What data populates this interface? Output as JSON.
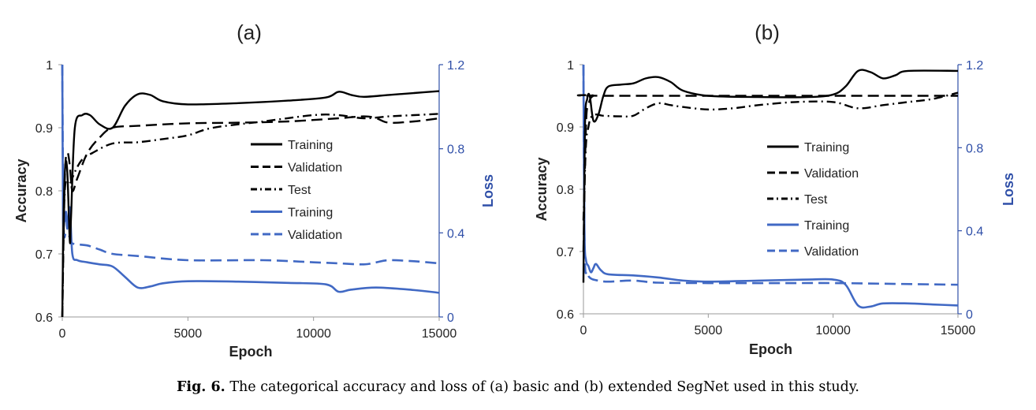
{
  "caption": {
    "label": "Fig. 6.",
    "text": "The categorical accuracy and loss of (a) basic and (b) extended SegNet used in this study."
  },
  "legend_entries": [
    "Training",
    "Validation",
    "Test",
    "Training",
    "Validation"
  ],
  "colors": {
    "accuracy": "#000000",
    "loss": "#4169c4",
    "right_axis": "#2f4fa8"
  },
  "chart_data": [
    {
      "type": "line",
      "title": "(a)",
      "xlabel": "Epoch",
      "ylabel": "Accuracy",
      "y2label": "Loss",
      "xlim": [
        0,
        15000
      ],
      "ylim": [
        0.6,
        1.0
      ],
      "y2lim": [
        0,
        1.2
      ],
      "xticks": [
        "0",
        "5000",
        "10000",
        "15000"
      ],
      "yticks": [
        "0.6",
        "0.7",
        "0.8",
        "0.9",
        "1"
      ],
      "y2ticks": [
        "0",
        "0.4",
        "0.8",
        "1.2"
      ],
      "grid": false,
      "legend_position": "center-right",
      "series": [
        {
          "name": "Training",
          "axis": "accuracy",
          "color": "#000000",
          "style": "solid",
          "points": [
            [
              0,
              0.6
            ],
            [
              50,
              0.76
            ],
            [
              120,
              0.84
            ],
            [
              200,
              0.83
            ],
            [
              300,
              0.72
            ],
            [
              350,
              0.76
            ],
            [
              500,
              0.9
            ],
            [
              800,
              0.92
            ],
            [
              1100,
              0.92
            ],
            [
              1500,
              0.905
            ],
            [
              2000,
              0.9
            ],
            [
              2500,
              0.935
            ],
            [
              3000,
              0.953
            ],
            [
              3500,
              0.952
            ],
            [
              4000,
              0.942
            ],
            [
              5000,
              0.937
            ],
            [
              7000,
              0.939
            ],
            [
              9000,
              0.943
            ],
            [
              10500,
              0.948
            ],
            [
              11000,
              0.957
            ],
            [
              11500,
              0.952
            ],
            [
              12000,
              0.949
            ],
            [
              13000,
              0.952
            ],
            [
              14000,
              0.955
            ],
            [
              15000,
              0.958
            ]
          ]
        },
        {
          "name": "Validation",
          "axis": "accuracy",
          "color": "#000000",
          "style": "dash",
          "points": [
            [
              0,
              0.6
            ],
            [
              100,
              0.82
            ],
            [
              200,
              0.86
            ],
            [
              300,
              0.84
            ],
            [
              400,
              0.8
            ],
            [
              600,
              0.82
            ],
            [
              1000,
              0.86
            ],
            [
              1500,
              0.885
            ],
            [
              2000,
              0.9
            ],
            [
              3000,
              0.903
            ],
            [
              5000,
              0.907
            ],
            [
              7000,
              0.908
            ],
            [
              9000,
              0.91
            ],
            [
              11000,
              0.915
            ],
            [
              12000,
              0.918
            ],
            [
              12500,
              0.915
            ],
            [
              13000,
              0.908
            ],
            [
              14000,
              0.91
            ],
            [
              15000,
              0.915
            ]
          ]
        },
        {
          "name": "Test",
          "axis": "accuracy",
          "color": "#000000",
          "style": "dashdot",
          "points": [
            [
              0,
              0.6
            ],
            [
              100,
              0.8
            ],
            [
              300,
              0.81
            ],
            [
              500,
              0.83
            ],
            [
              800,
              0.85
            ],
            [
              1200,
              0.86
            ],
            [
              2000,
              0.875
            ],
            [
              3000,
              0.877
            ],
            [
              4000,
              0.882
            ],
            [
              5000,
              0.888
            ],
            [
              6000,
              0.9
            ],
            [
              8000,
              0.91
            ],
            [
              10000,
              0.92
            ],
            [
              11000,
              0.92
            ],
            [
              12000,
              0.915
            ],
            [
              13000,
              0.918
            ],
            [
              14000,
              0.92
            ],
            [
              15000,
              0.922
            ]
          ]
        },
        {
          "name": "Training",
          "axis": "loss",
          "color": "#4169c4",
          "style": "solid",
          "points": [
            [
              0,
              1.2
            ],
            [
              30,
              0.5
            ],
            [
              80,
              0.45
            ],
            [
              150,
              0.5
            ],
            [
              200,
              0.42
            ],
            [
              300,
              0.52
            ],
            [
              400,
              0.3
            ],
            [
              600,
              0.27
            ],
            [
              1000,
              0.26
            ],
            [
              1500,
              0.25
            ],
            [
              2000,
              0.24
            ],
            [
              2500,
              0.19
            ],
            [
              3000,
              0.14
            ],
            [
              3500,
              0.145
            ],
            [
              4000,
              0.16
            ],
            [
              5000,
              0.17
            ],
            [
              7000,
              0.168
            ],
            [
              9000,
              0.162
            ],
            [
              10500,
              0.155
            ],
            [
              11000,
              0.12
            ],
            [
              11500,
              0.13
            ],
            [
              12500,
              0.14
            ],
            [
              14000,
              0.128
            ],
            [
              15000,
              0.115
            ]
          ]
        },
        {
          "name": "Validation",
          "axis": "loss",
          "color": "#4169c4",
          "style": "dash",
          "points": [
            [
              0,
              1.2
            ],
            [
              50,
              0.45
            ],
            [
              150,
              0.4
            ],
            [
              300,
              0.38
            ],
            [
              400,
              0.35
            ],
            [
              1000,
              0.34
            ],
            [
              1500,
              0.32
            ],
            [
              2000,
              0.3
            ],
            [
              3000,
              0.29
            ],
            [
              5000,
              0.27
            ],
            [
              8000,
              0.27
            ],
            [
              10000,
              0.26
            ],
            [
              11000,
              0.255
            ],
            [
              12000,
              0.25
            ],
            [
              12500,
              0.26
            ],
            [
              13000,
              0.27
            ],
            [
              14000,
              0.265
            ],
            [
              15000,
              0.255
            ]
          ]
        }
      ]
    },
    {
      "type": "line",
      "title": "(b)",
      "xlabel": "Epoch",
      "ylabel": "Accuracy",
      "y2label": "Loss",
      "xlim": [
        0,
        15000
      ],
      "ylim": [
        0.6,
        1.0
      ],
      "y2lim": [
        0,
        1.2
      ],
      "xticks": [
        "0",
        "5000",
        "10000",
        "15000"
      ],
      "yticks": [
        "0.6",
        "0.7",
        "0.8",
        "0.9",
        "1"
      ],
      "y2ticks": [
        "0",
        "0.4",
        "0.8",
        "1.2"
      ],
      "grid": false,
      "legend_position": "center-right",
      "series": [
        {
          "name": "Training",
          "axis": "accuracy",
          "color": "#000000",
          "style": "solid",
          "points": [
            [
              0,
              0.65
            ],
            [
              60,
              0.9
            ],
            [
              150,
              0.945
            ],
            [
              250,
              0.95
            ],
            [
              400,
              0.91
            ],
            [
              600,
              0.92
            ],
            [
              800,
              0.95
            ],
            [
              1000,
              0.965
            ],
            [
              1500,
              0.968
            ],
            [
              2000,
              0.97
            ],
            [
              2500,
              0.978
            ],
            [
              3000,
              0.98
            ],
            [
              3500,
              0.972
            ],
            [
              4000,
              0.958
            ],
            [
              5000,
              0.95
            ],
            [
              7000,
              0.948
            ],
            [
              9000,
              0.948
            ],
            [
              10000,
              0.952
            ],
            [
              10500,
              0.965
            ],
            [
              11000,
              0.99
            ],
            [
              11500,
              0.988
            ],
            [
              12000,
              0.978
            ],
            [
              12500,
              0.983
            ],
            [
              13000,
              0.99
            ],
            [
              15000,
              0.99
            ]
          ]
        },
        {
          "name": "Validation",
          "axis": "accuracy",
          "color": "#000000",
          "style": "dash",
          "points": [
            [
              0,
              0.7
            ],
            [
              100,
              0.9
            ],
            [
              200,
              0.935
            ],
            [
              400,
              0.95
            ],
            [
              1000,
              0.95
            ],
            [
              15000,
              0.95
            ]
          ]
        },
        {
          "name": "Test",
          "axis": "accuracy",
          "color": "#000000",
          "style": "dashdot",
          "points": [
            [
              0,
              0.75
            ],
            [
              100,
              0.87
            ],
            [
              200,
              0.9
            ],
            [
              300,
              0.915
            ],
            [
              500,
              0.92
            ],
            [
              800,
              0.918
            ],
            [
              1500,
              0.917
            ],
            [
              2000,
              0.918
            ],
            [
              2500,
              0.93
            ],
            [
              3000,
              0.938
            ],
            [
              3500,
              0.935
            ],
            [
              4000,
              0.932
            ],
            [
              5000,
              0.928
            ],
            [
              6000,
              0.93
            ],
            [
              7000,
              0.935
            ],
            [
              8500,
              0.94
            ],
            [
              10000,
              0.94
            ],
            [
              11000,
              0.93
            ],
            [
              12000,
              0.935
            ],
            [
              13000,
              0.94
            ],
            [
              14000,
              0.945
            ],
            [
              15000,
              0.955
            ]
          ]
        },
        {
          "name": "Training",
          "axis": "loss",
          "color": "#4169c4",
          "style": "solid",
          "points": [
            [
              0,
              1.2
            ],
            [
              40,
              0.4
            ],
            [
              100,
              0.26
            ],
            [
              200,
              0.23
            ],
            [
              300,
              0.2
            ],
            [
              400,
              0.22
            ],
            [
              500,
              0.24
            ],
            [
              700,
              0.21
            ],
            [
              1000,
              0.19
            ],
            [
              2000,
              0.185
            ],
            [
              3000,
              0.175
            ],
            [
              4000,
              0.16
            ],
            [
              5000,
              0.155
            ],
            [
              7000,
              0.16
            ],
            [
              9000,
              0.165
            ],
            [
              10000,
              0.165
            ],
            [
              10500,
              0.14
            ],
            [
              11000,
              0.04
            ],
            [
              11500,
              0.035
            ],
            [
              12000,
              0.05
            ],
            [
              13000,
              0.05
            ],
            [
              14000,
              0.045
            ],
            [
              15000,
              0.04
            ]
          ]
        },
        {
          "name": "Validation",
          "axis": "loss",
          "color": "#4169c4",
          "style": "dash",
          "points": [
            [
              0,
              1.2
            ],
            [
              50,
              0.3
            ],
            [
              150,
              0.2
            ],
            [
              300,
              0.17
            ],
            [
              600,
              0.16
            ],
            [
              1000,
              0.155
            ],
            [
              2000,
              0.16
            ],
            [
              3000,
              0.15
            ],
            [
              5000,
              0.148
            ],
            [
              8000,
              0.148
            ],
            [
              10000,
              0.148
            ],
            [
              12000,
              0.145
            ],
            [
              15000,
              0.14
            ]
          ]
        }
      ]
    }
  ]
}
